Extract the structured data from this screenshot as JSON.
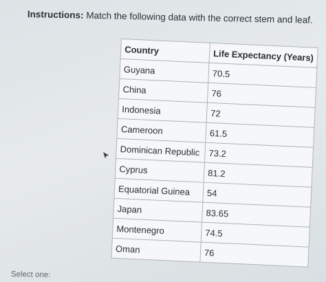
{
  "instructions": {
    "lead": "Instructions:",
    "text": " Match the following data with the correct stem and leaf."
  },
  "table": {
    "headers": [
      "Country",
      "Life Expectancy (Years)"
    ],
    "rows": [
      {
        "country": "Guyana",
        "value": "70.5"
      },
      {
        "country": "China",
        "value": "76"
      },
      {
        "country": "Indonesia",
        "value": "72"
      },
      {
        "country": "Cameroon",
        "value": "61.5"
      },
      {
        "country": "Dominican Republic",
        "value": "73.2"
      },
      {
        "country": "Cyprus",
        "value": "81.2"
      },
      {
        "country": "Equatorial Guinea",
        "value": "54"
      },
      {
        "country": "Japan",
        "value": "83.65"
      },
      {
        "country": "Montenegro",
        "value": "74.5"
      },
      {
        "country": "Oman",
        "value": "76"
      }
    ]
  },
  "footer": {
    "select_one": "Select one:"
  },
  "icons": {
    "cursor": "mouse-pointer-icon"
  }
}
